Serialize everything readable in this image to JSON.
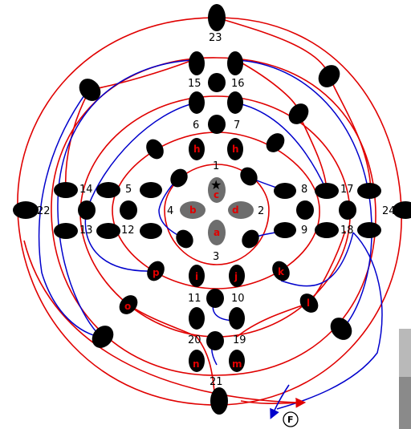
{
  "diagram": {
    "colors": {
      "red": "#e00000",
      "blue": "#0000cc",
      "node": "#000000",
      "center_node": "#6d6d6d"
    },
    "number_labels": [
      "1",
      "2",
      "3",
      "4",
      "5",
      "6",
      "7",
      "8",
      "9",
      "10",
      "11",
      "12",
      "13",
      "14",
      "15",
      "16",
      "17",
      "18",
      "19",
      "20",
      "21",
      "22",
      "23",
      "24"
    ],
    "letter_labels": [
      "a",
      "b",
      "c",
      "d",
      "h",
      "h",
      "i",
      "j",
      "k",
      "l",
      "m",
      "n",
      "o",
      "p"
    ],
    "finish_label": "F",
    "markers": {
      "star": "★"
    }
  }
}
